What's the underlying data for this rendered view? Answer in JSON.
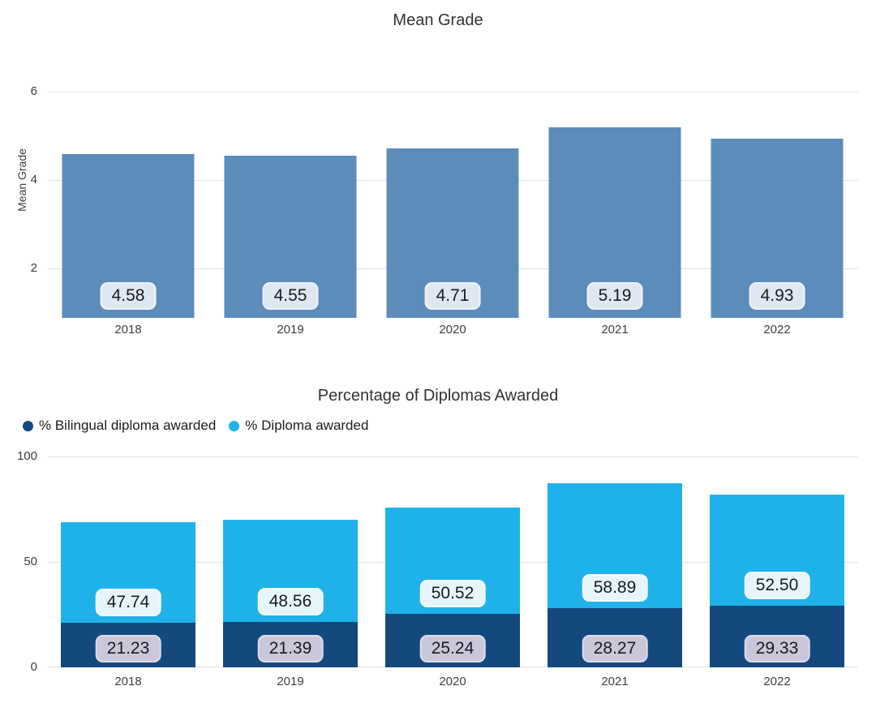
{
  "chart_data": [
    {
      "type": "bar",
      "title": "Mean Grade",
      "ylabel": "Mean Grade",
      "categories": [
        "2018",
        "2019",
        "2020",
        "2021",
        "2022"
      ],
      "values": [
        4.58,
        4.55,
        4.71,
        5.19,
        4.93
      ],
      "value_labels": [
        "4.58",
        "4.55",
        "4.71",
        "5.19",
        "4.93"
      ],
      "yticks": [
        2,
        4,
        6
      ],
      "ylim": [
        0.88,
        6
      ],
      "grid": true,
      "bar_color": "#5b8cba",
      "label_pill": {
        "bg": "#dfe7f2",
        "border": "#eff3f9",
        "text_color": "#1b1b1b"
      }
    },
    {
      "type": "stacked-bar",
      "title": "Percentage of Diplomas Awarded",
      "categories": [
        "2018",
        "2019",
        "2020",
        "2021",
        "2022"
      ],
      "series": [
        {
          "name": "% Bilingual diploma awarded",
          "color": "#14497d",
          "values": [
            21.23,
            21.39,
            25.24,
            28.27,
            29.33
          ],
          "value_labels": [
            "21.23",
            "21.39",
            "25.24",
            "28.27",
            "29.33"
          ],
          "label_pill": {
            "bg": "#c9c7d9",
            "border": "#dedce9",
            "text_color": "#1b1b1b"
          }
        },
        {
          "name": "% Diploma awarded",
          "color": "#1fb2ea",
          "values": [
            47.74,
            48.56,
            50.52,
            58.89,
            52.5
          ],
          "value_labels": [
            "47.74",
            "48.56",
            "50.52",
            "58.89",
            "52.50"
          ],
          "label_pill": {
            "bg": "#e6f5fc",
            "border": "#f3fafe",
            "text_color": "#1b1b1b"
          }
        }
      ],
      "yticks": [
        0,
        50,
        100
      ],
      "ylim": [
        0,
        100
      ],
      "grid": true,
      "legend_position": "top-left"
    }
  ]
}
